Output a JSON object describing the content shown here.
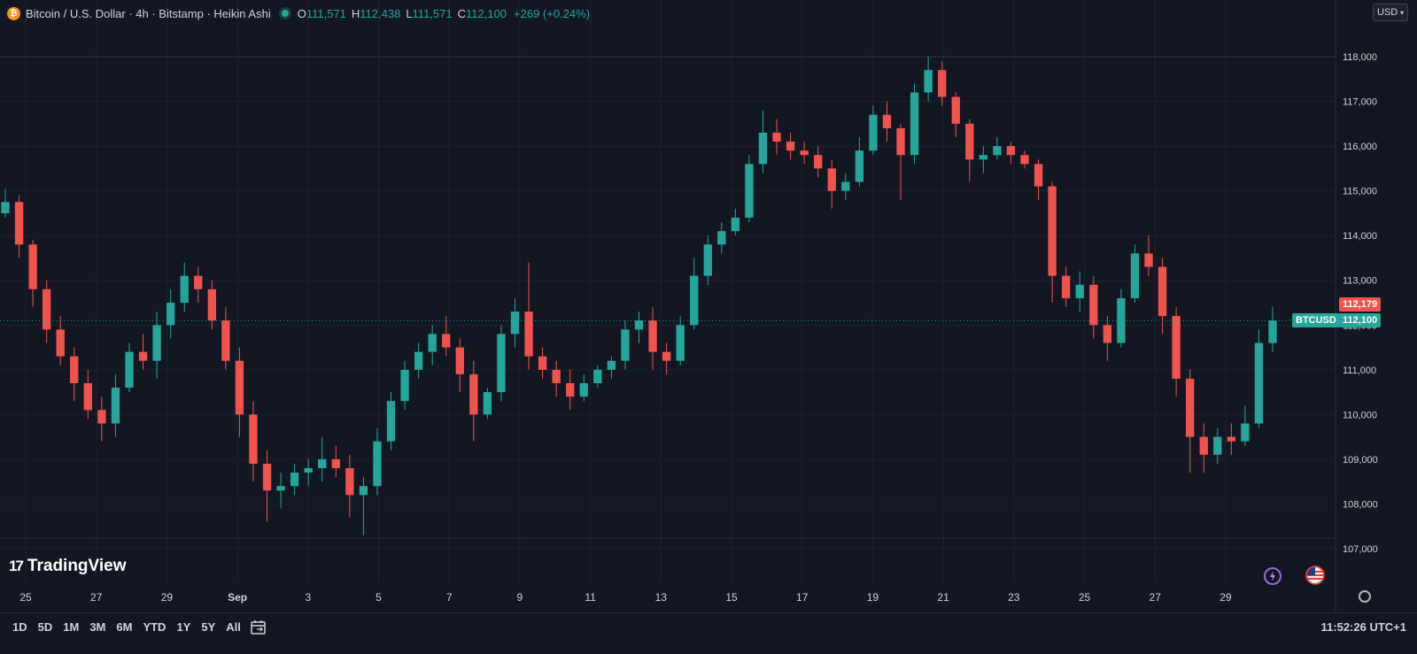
{
  "header": {
    "coin_glyph": "₿",
    "title": "Bitcoin / U.S. Dollar · 4h · Bitstamp · Heikin Ashi",
    "ohlc": {
      "o_label": "O",
      "o_value": "111,571",
      "h_label": "H",
      "h_value": "112,438",
      "l_label": "L",
      "l_value": "111,571",
      "c_label": "C",
      "c_value": "112,100"
    },
    "change": "+269 (+0.24%)"
  },
  "currency_selector": {
    "value": "USD",
    "icon": "chevron-down-icon"
  },
  "price_labels": {
    "high_tag": "112,179",
    "symbol_tag": "BTCUSD",
    "last_tag": "112,100"
  },
  "logo": {
    "mark": "17",
    "name": "TradingView"
  },
  "ranges": [
    "1D",
    "5D",
    "1M",
    "3M",
    "6M",
    "YTD",
    "1Y",
    "5Y",
    "All"
  ],
  "clock": "11:52:26 UTC+1",
  "colors": {
    "up": "#26a69a",
    "down": "#ef5350",
    "background": "#131722",
    "grid": "#1e222d",
    "text": "#d1d4dc"
  },
  "chart_data": {
    "type": "candlestick",
    "style": "Heikin Ashi",
    "interval": "4h",
    "y_ticks": [
      107000,
      108000,
      109000,
      110000,
      111000,
      112000,
      113000,
      114000,
      115000,
      116000,
      117000,
      118000
    ],
    "y_tick_labels": [
      "107,000",
      "108,000",
      "109,000",
      "110,000",
      "111,000",
      "112,000",
      "113,000",
      "114,000",
      "115,000",
      "116,000",
      "117,000",
      "118,000"
    ],
    "x_tick_labels": [
      "25",
      "27",
      "29",
      "Sep",
      "3",
      "5",
      "7",
      "9",
      "11",
      "13",
      "15",
      "17",
      "19",
      "21",
      "23",
      "25",
      "27",
      "29"
    ],
    "grid": true,
    "ohlc": [
      [
        114500,
        115050,
        114400,
        114750
      ],
      [
        114750,
        114900,
        113500,
        113800
      ],
      [
        113800,
        113900,
        112400,
        112800
      ],
      [
        112800,
        113000,
        111600,
        111900
      ],
      [
        111900,
        112200,
        111100,
        111300
      ],
      [
        111300,
        111500,
        110300,
        110700
      ],
      [
        110700,
        111000,
        109900,
        110100
      ],
      [
        110100,
        110400,
        109400,
        109800
      ],
      [
        109800,
        110900,
        109500,
        110600
      ],
      [
        110600,
        111600,
        110500,
        111400
      ],
      [
        111400,
        111800,
        111000,
        111200
      ],
      [
        111200,
        112300,
        110800,
        112000
      ],
      [
        112000,
        112800,
        111700,
        112500
      ],
      [
        112500,
        113400,
        112300,
        113100
      ],
      [
        113100,
        113300,
        112500,
        112800
      ],
      [
        112800,
        113000,
        111900,
        112100
      ],
      [
        112100,
        112400,
        111000,
        111200
      ],
      [
        111200,
        111500,
        109500,
        110000
      ],
      [
        110000,
        110300,
        108500,
        108900
      ],
      [
        108900,
        109200,
        107600,
        108300
      ],
      [
        108300,
        108700,
        107900,
        108400
      ],
      [
        108400,
        108900,
        108200,
        108700
      ],
      [
        108700,
        109000,
        108400,
        108800
      ],
      [
        108800,
        109500,
        108500,
        109000
      ],
      [
        109000,
        109300,
        108600,
        108800
      ],
      [
        108800,
        109100,
        107700,
        108200
      ],
      [
        108200,
        108600,
        107300,
        108400
      ],
      [
        108400,
        109700,
        108200,
        109400
      ],
      [
        109400,
        110500,
        109200,
        110300
      ],
      [
        110300,
        111200,
        110100,
        111000
      ],
      [
        111000,
        111600,
        110800,
        111400
      ],
      [
        111400,
        112000,
        111100,
        111800
      ],
      [
        111800,
        112200,
        111300,
        111500
      ],
      [
        111500,
        111700,
        110500,
        110900
      ],
      [
        110900,
        111200,
        109400,
        110000
      ],
      [
        110000,
        110600,
        109900,
        110500
      ],
      [
        110500,
        112000,
        110300,
        111800
      ],
      [
        111800,
        112600,
        111500,
        112300
      ],
      [
        112300,
        113400,
        111000,
        111300
      ],
      [
        111300,
        111500,
        110800,
        111000
      ],
      [
        111000,
        111200,
        110400,
        110700
      ],
      [
        110700,
        111000,
        110100,
        110400
      ],
      [
        110400,
        110900,
        110300,
        110700
      ],
      [
        110700,
        111100,
        110600,
        111000
      ],
      [
        111000,
        111300,
        110800,
        111200
      ],
      [
        111200,
        112100,
        111000,
        111900
      ],
      [
        111900,
        112300,
        111600,
        112100
      ],
      [
        112100,
        112400,
        111000,
        111400
      ],
      [
        111400,
        111600,
        110900,
        111200
      ],
      [
        111200,
        112200,
        111100,
        112000
      ],
      [
        112000,
        113500,
        111900,
        113100
      ],
      [
        113100,
        114000,
        112900,
        113800
      ],
      [
        113800,
        114300,
        113600,
        114100
      ],
      [
        114100,
        114600,
        114000,
        114400
      ],
      [
        114400,
        115800,
        114300,
        115600
      ],
      [
        115600,
        116800,
        115400,
        116300
      ],
      [
        116300,
        116600,
        115800,
        116100
      ],
      [
        116100,
        116300,
        115700,
        115900
      ],
      [
        115900,
        116100,
        115600,
        115800
      ],
      [
        115800,
        116000,
        115300,
        115500
      ],
      [
        115500,
        115700,
        114600,
        115000
      ],
      [
        115000,
        115400,
        114800,
        115200
      ],
      [
        115200,
        116200,
        115100,
        115900
      ],
      [
        115900,
        116900,
        115800,
        116700
      ],
      [
        116700,
        117000,
        116100,
        116400
      ],
      [
        116400,
        116500,
        114800,
        115800
      ],
      [
        115800,
        117400,
        115600,
        117200
      ],
      [
        117200,
        118000,
        117000,
        117700
      ],
      [
        117700,
        117900,
        116900,
        117100
      ],
      [
        117100,
        117200,
        116200,
        116500
      ],
      [
        116500,
        116600,
        115200,
        115700
      ],
      [
        115700,
        116000,
        115400,
        115800
      ],
      [
        115800,
        116200,
        115700,
        116000
      ],
      [
        116000,
        116100,
        115600,
        115800
      ],
      [
        115800,
        115900,
        115500,
        115600
      ],
      [
        115600,
        115700,
        114800,
        115100
      ],
      [
        115100,
        115200,
        112500,
        113100
      ],
      [
        113100,
        113300,
        112400,
        112600
      ],
      [
        112600,
        113200,
        112300,
        112900
      ],
      [
        112900,
        113100,
        111700,
        112000
      ],
      [
        112000,
        112200,
        111200,
        111600
      ],
      [
        111600,
        112800,
        111500,
        112600
      ],
      [
        112600,
        113800,
        112500,
        113600
      ],
      [
        113600,
        114000,
        113100,
        113300
      ],
      [
        113300,
        113500,
        111800,
        112200
      ],
      [
        112200,
        112400,
        110400,
        110800
      ],
      [
        110800,
        111000,
        108700,
        109500
      ],
      [
        109500,
        109800,
        108700,
        109100
      ],
      [
        109100,
        109700,
        108900,
        109500
      ],
      [
        109500,
        109800,
        109100,
        109400
      ],
      [
        109400,
        110200,
        109300,
        109800
      ],
      [
        109800,
        111900,
        109700,
        111600
      ],
      [
        111600,
        112400,
        111400,
        112100
      ]
    ]
  }
}
